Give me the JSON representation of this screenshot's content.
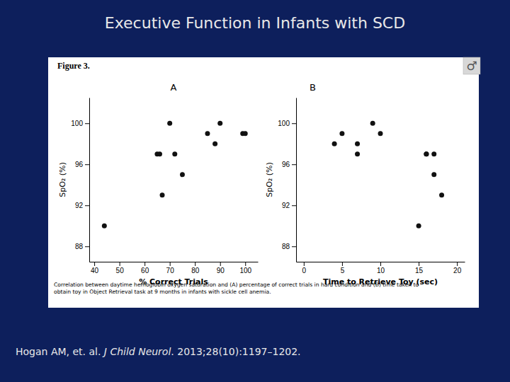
{
  "chart_data": [
    {
      "type": "scatter",
      "title": "Executive Function in Infants with SCD",
      "subtitle": "A",
      "annotations": [
        "Figure 3.",
        "♂",
        "Correlation between daytime hemoglobin oxygen saturation and (A) percentage of correct trials in hard condition and (B) time taken to\nobtain toy in Object Retrieval task at 9 months in infants with sickle cell anemia."
      ],
      "citation": [
        "Hogan AM, et. al. ",
        "J Child Neurol",
        ". 2013;28(10):1197–1202."
      ],
      "x": [
        44,
        65,
        66,
        67,
        70,
        72,
        75,
        85,
        88,
        90,
        99,
        100
      ],
      "values": [
        90,
        97,
        97,
        93,
        100,
        97,
        95,
        99,
        98,
        100,
        99,
        99
      ],
      "xlabel": "% Correct Trials",
      "ylabel": "SpO₂ (%)",
      "xlim": [
        38,
        105
      ],
      "xticks": [
        40,
        50,
        60,
        70,
        80,
        90,
        100
      ],
      "ylim": [
        86.5,
        102.5
      ],
      "yticks": [
        88,
        92,
        96,
        100
      ],
      "color": "#111111"
    },
    {
      "type": "scatter",
      "subtitle": "B",
      "x": [
        4,
        5,
        7,
        7,
        9,
        10,
        15,
        16,
        16,
        17,
        17,
        18
      ],
      "values": [
        98,
        99,
        98,
        97,
        100,
        99,
        90,
        97,
        97,
        95,
        97,
        93
      ],
      "xlabel": "Time to Retrieve Toy (sec)",
      "ylabel": "SpO₂ (%)",
      "xlim": [
        -1,
        21
      ],
      "xticks": [
        0,
        5,
        10,
        15,
        20
      ],
      "ylim": [
        86.5,
        102.5
      ],
      "yticks": [
        88,
        92,
        96,
        100
      ],
      "color": "#111111"
    }
  ]
}
